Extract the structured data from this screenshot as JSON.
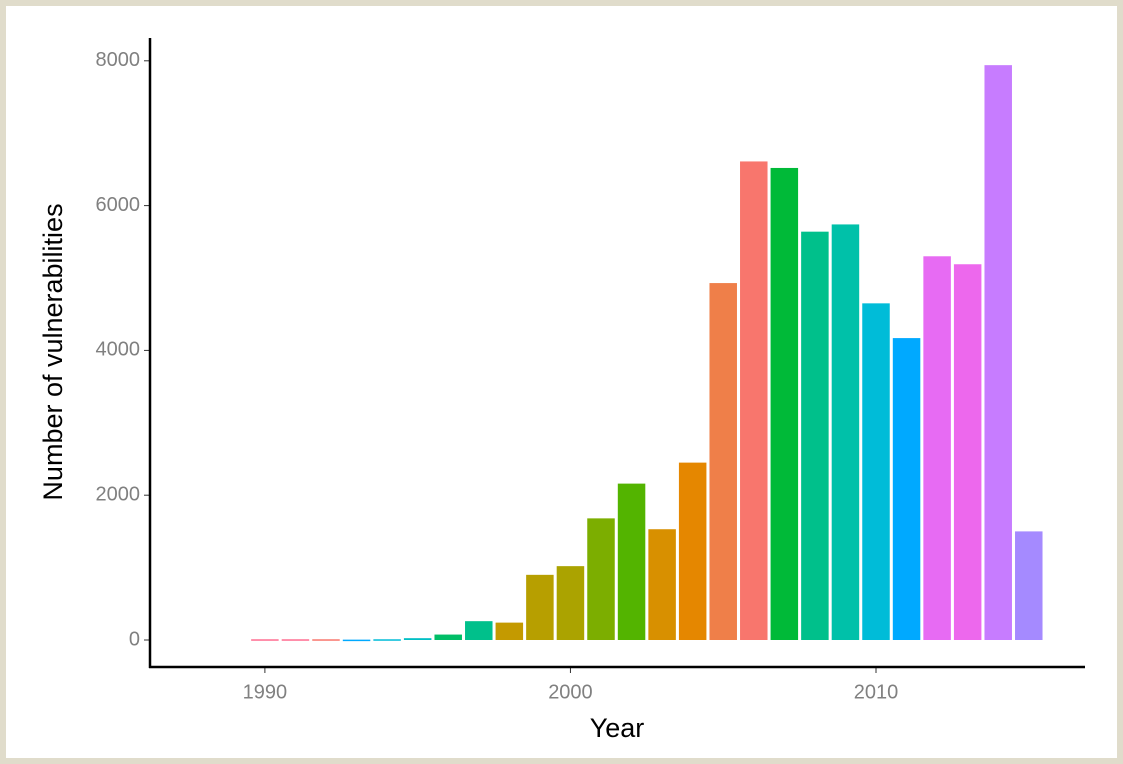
{
  "chart_data": {
    "type": "bar",
    "x_label": "Year",
    "y_label": "Number of vulnerabilities",
    "x": [
      1990,
      1991,
      1992,
      1993,
      1994,
      1995,
      1996,
      1997,
      1998,
      1999,
      2000,
      2001,
      2002,
      2003,
      2004,
      2005,
      2006,
      2007,
      2008,
      2009,
      2010,
      2011,
      2012,
      2013,
      2014,
      2015
    ],
    "values": [
      10,
      10,
      10,
      5,
      10,
      25,
      75,
      260,
      240,
      900,
      1020,
      1680,
      2160,
      1530,
      2450,
      4930,
      6610,
      6520,
      5640,
      5740,
      4650,
      4170,
      5300,
      5190,
      7940,
      1500
    ],
    "colors": [
      "#FF6C91",
      "#FF6C91",
      "#F8766D",
      "#00A9FF",
      "#00BCD8",
      "#00BFC4",
      "#00BE67",
      "#00C08B",
      "#C49A00",
      "#B79F00",
      "#ABA300",
      "#7CAE00",
      "#53B400",
      "#D89000",
      "#E58700",
      "#EF7F49",
      "#F8766D",
      "#00BA38",
      "#00C08B",
      "#00C1A9",
      "#00BCD8",
      "#00A9FF",
      "#E76BF3",
      "#ED68ED",
      "#C77CFF",
      "#A58AFF"
    ],
    "xlim": [
      1986.24,
      2016.84
    ],
    "xticks": [
      1990,
      2000,
      2010
    ],
    "ylim": [
      -373,
      8315
    ],
    "yticks": [
      0,
      2000,
      4000,
      6000,
      8000
    ],
    "bar_width": 0.9,
    "grid": false
  }
}
